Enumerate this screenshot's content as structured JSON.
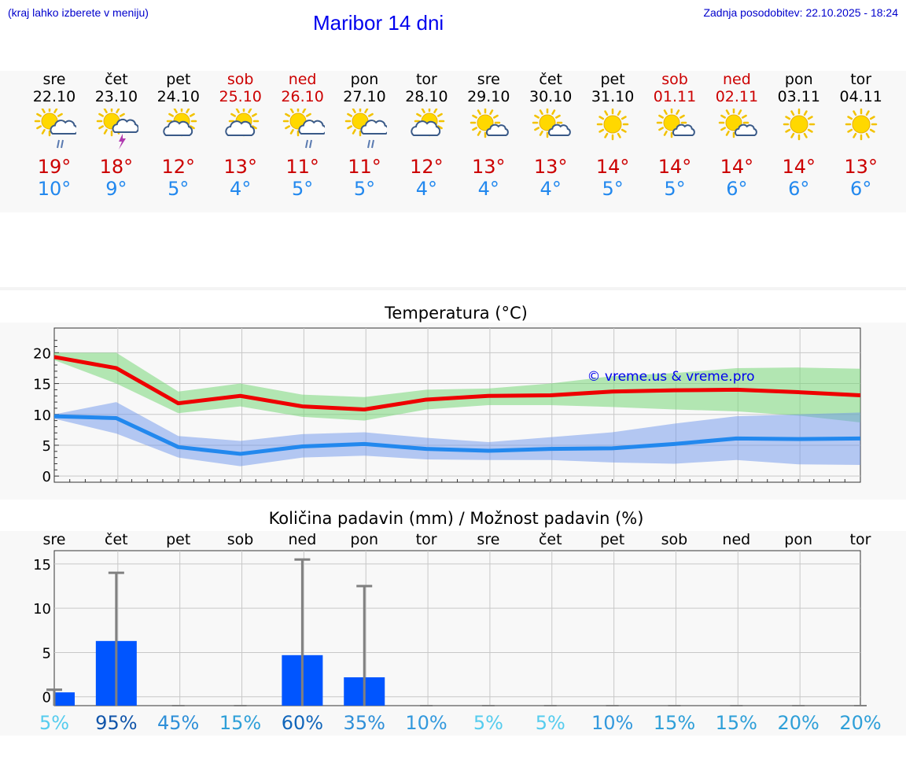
{
  "header": {
    "note": "(kraj lahko izberete v meniju)",
    "title": "Maribor 14 dni",
    "updated": "Zadnja posodobitev: 22.10.2025 - 18:24"
  },
  "colors": {
    "max": "#cc0000",
    "min": "#2288ee",
    "weekend": "#cc0000",
    "precip_bar": "#0055ff"
  },
  "days": [
    {
      "name": "sre",
      "date": "22.10",
      "max": "19°",
      "min": "10°",
      "weekend": false,
      "icon": "sun-cloud-rain-icon"
    },
    {
      "name": "čet",
      "date": "23.10",
      "max": "18°",
      "min": "9°",
      "weekend": false,
      "icon": "sun-cloud-thunder-icon"
    },
    {
      "name": "pet",
      "date": "24.10",
      "max": "12°",
      "min": "5°",
      "weekend": false,
      "icon": "sun-cloud-icon"
    },
    {
      "name": "sob",
      "date": "25.10",
      "max": "13°",
      "min": "4°",
      "weekend": true,
      "icon": "sun-cloud-icon"
    },
    {
      "name": "ned",
      "date": "26.10",
      "max": "11°",
      "min": "5°",
      "weekend": true,
      "icon": "sun-cloud-rain-icon"
    },
    {
      "name": "pon",
      "date": "27.10",
      "max": "11°",
      "min": "5°",
      "weekend": false,
      "icon": "sun-cloud-rain-icon"
    },
    {
      "name": "tor",
      "date": "28.10",
      "max": "12°",
      "min": "4°",
      "weekend": false,
      "icon": "sun-cloud-icon"
    },
    {
      "name": "sre",
      "date": "29.10",
      "max": "13°",
      "min": "4°",
      "weekend": false,
      "icon": "sun-small-cloud-icon"
    },
    {
      "name": "čet",
      "date": "30.10",
      "max": "13°",
      "min": "4°",
      "weekend": false,
      "icon": "sun-small-cloud-icon"
    },
    {
      "name": "pet",
      "date": "31.10",
      "max": "14°",
      "min": "5°",
      "weekend": false,
      "icon": "sun-icon"
    },
    {
      "name": "sob",
      "date": "01.11",
      "max": "14°",
      "min": "5°",
      "weekend": true,
      "icon": "sun-small-cloud-icon"
    },
    {
      "name": "ned",
      "date": "02.11",
      "max": "14°",
      "min": "6°",
      "weekend": true,
      "icon": "sun-small-cloud-icon"
    },
    {
      "name": "pon",
      "date": "03.11",
      "max": "14°",
      "min": "6°",
      "weekend": false,
      "icon": "sun-icon"
    },
    {
      "name": "tor",
      "date": "04.11",
      "max": "13°",
      "min": "6°",
      "weekend": false,
      "icon": "sun-icon"
    }
  ],
  "chart_data": [
    {
      "type": "line",
      "title": "Temperatura (°C)",
      "watermark": "© vreme.us & vreme.pro",
      "ylim": [
        -1,
        24
      ],
      "yticks": [
        0,
        5,
        10,
        15,
        20
      ],
      "grid": true,
      "x": [
        0,
        1,
        2,
        3,
        4,
        5,
        6,
        7,
        8,
        9,
        10,
        11,
        12,
        13
      ],
      "series": [
        {
          "values": [
            19.3,
            17.5,
            11.8,
            13.0,
            11.3,
            10.8,
            12.4,
            13.0,
            13.1,
            13.7,
            13.9,
            14.0,
            13.6,
            13.1
          ],
          "band_low": [
            18.8,
            15.0,
            10.2,
            11.3,
            9.6,
            9.0,
            10.8,
            11.5,
            11.5,
            11.2,
            10.8,
            10.5,
            9.8,
            8.7
          ],
          "band_high": [
            20.0,
            20.0,
            13.7,
            15.0,
            13.2,
            12.8,
            14.0,
            14.2,
            15.0,
            16.2,
            16.7,
            17.5,
            17.6,
            17.4
          ]
        },
        {
          "values": [
            9.7,
            9.4,
            4.7,
            3.6,
            4.8,
            5.2,
            4.4,
            4.1,
            4.4,
            4.5,
            5.2,
            6.1,
            6.0,
            6.1
          ],
          "band_low": [
            9.3,
            6.9,
            3.0,
            1.6,
            3.0,
            3.3,
            2.7,
            2.6,
            2.6,
            2.2,
            2.0,
            2.6,
            1.9,
            1.8
          ],
          "band_high": [
            10.0,
            12.0,
            6.5,
            5.7,
            6.8,
            7.1,
            6.2,
            5.5,
            6.3,
            7.1,
            8.5,
            9.7,
            10.0,
            10.3
          ]
        }
      ]
    },
    {
      "type": "bar",
      "title": "Količina padavin (mm) / Možnost padavin (%)",
      "categories": [
        "sre",
        "čet",
        "pet",
        "sob",
        "ned",
        "pon",
        "tor",
        "sre",
        "čet",
        "pet",
        "sob",
        "ned",
        "pon",
        "tor"
      ],
      "ylim": [
        -1,
        16.5
      ],
      "yticks": [
        0,
        5,
        10,
        15
      ],
      "grid": true,
      "values": [
        0.5,
        6.3,
        0,
        0,
        4.7,
        2.2,
        0,
        0,
        0,
        0,
        0,
        0,
        0,
        0
      ],
      "error_max": [
        0.8,
        14.0,
        0,
        0,
        15.5,
        12.5,
        0,
        0,
        0,
        0,
        0,
        0,
        0,
        0
      ],
      "probability": [
        "5%",
        "95%",
        "45%",
        "15%",
        "60%",
        "35%",
        "10%",
        "5%",
        "5%",
        "10%",
        "15%",
        "15%",
        "20%",
        "20%"
      ],
      "probability_colors": [
        "#55ccee",
        "#1155aa",
        "#2e8fd8",
        "#2e9fd8",
        "#1166bb",
        "#2e8fd8",
        "#3399dd",
        "#55ccee",
        "#55ccee",
        "#3399dd",
        "#2e9fd8",
        "#2e9fd8",
        "#2e9fd8",
        "#2e9fd8"
      ]
    }
  ]
}
